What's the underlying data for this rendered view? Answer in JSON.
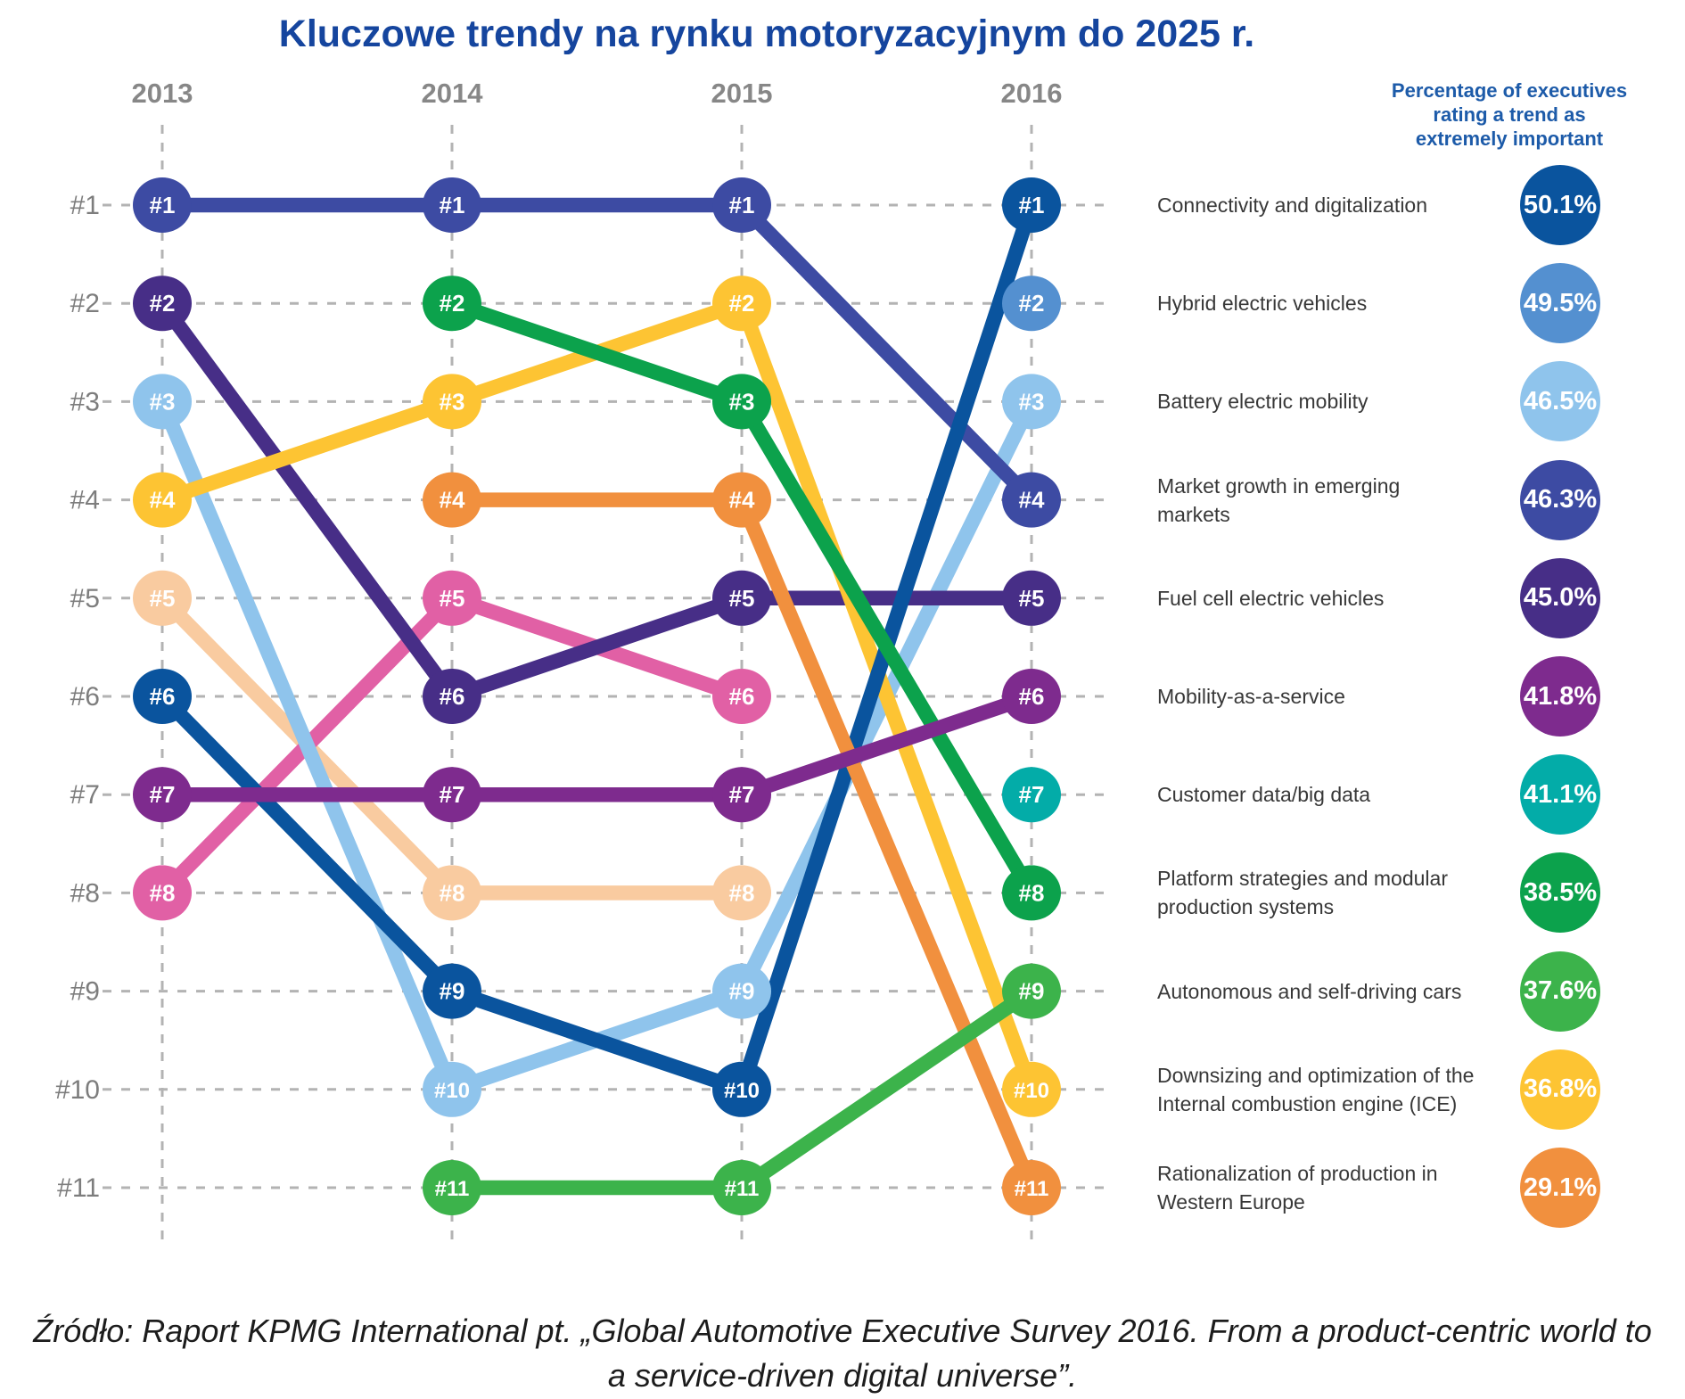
{
  "title": "Kluczowe trendy na rynku motoryzacyjnym do 2025 r.",
  "right_header_lines": [
    "Percentage of executives",
    "rating a trend as",
    "extremely important"
  ],
  "source_lines": [
    "Źródło: Raport KPMG International pt. „Global Automotive Executive Survey 2016. From a product-centric world to",
    "a service-driven digital universe”."
  ],
  "palette": {
    "brand_blue": "#15459E",
    "header_blue": "#1D5BA9",
    "year_gray": "#878787",
    "rank_gray": "#7D7D7D",
    "grid_gray": "#B3B3B3",
    "legend_text": "#383838",
    "source_text": "#1C1C1C"
  },
  "chart_data": {
    "type": "bump",
    "years": [
      "2013",
      "2014",
      "2015",
      "2016"
    ],
    "rank_labels": [
      "#1",
      "#2",
      "#3",
      "#4",
      "#5",
      "#6",
      "#7",
      "#8",
      "#9",
      "#10",
      "#11"
    ],
    "grid": "dashed",
    "legend_position": "right",
    "trends": [
      {
        "key": "unnamed-peach-trend",
        "label_lines": [],
        "pct": null,
        "color": "#F9CBA0",
        "ranks": [
          5,
          8,
          8,
          null
        ]
      },
      {
        "key": "unnamed-pink-trend",
        "label_lines": [],
        "pct": null,
        "color": "#E160A5",
        "ranks": [
          8,
          5,
          6,
          null
        ]
      },
      {
        "key": "battery-electric-mobility",
        "label_lines": [
          "Battery electric mobility"
        ],
        "pct": "46.5%",
        "color": "#8FC4EC",
        "ranks": [
          3,
          10,
          9,
          3
        ]
      },
      {
        "key": "market-growth-emerging-markets",
        "label_lines": [
          "Market growth in emerging",
          "markets"
        ],
        "pct": "46.3%",
        "color": "#3D4BA3",
        "ranks": [
          1,
          1,
          1,
          4
        ]
      },
      {
        "key": "fuel-cell-electric-vehicles",
        "label_lines": [
          "Fuel cell electric vehicles"
        ],
        "pct": "45.0%",
        "color": "#472E87",
        "ranks": [
          2,
          6,
          5,
          5
        ]
      },
      {
        "key": "ice-downsizing",
        "label_lines": [
          "Downsizing and optimization of the",
          "Internal combustion engine (ICE)"
        ],
        "pct": "36.8%",
        "color": "#FDC433",
        "ranks": [
          4,
          3,
          2,
          10
        ]
      },
      {
        "key": "connectivity-and-digitalization",
        "label_lines": [
          "Connectivity and digitalization"
        ],
        "pct": "50.1%",
        "color": "#0A549E",
        "ranks": [
          6,
          9,
          10,
          1
        ]
      },
      {
        "key": "rationalization-western-europe",
        "label_lines": [
          "Rationalization of production in",
          "Western Europe"
        ],
        "pct": "29.1%",
        "color": "#F1903E",
        "ranks": [
          null,
          4,
          4,
          11
        ]
      },
      {
        "key": "platform-strategies",
        "label_lines": [
          "Platform strategies and modular",
          "production systems"
        ],
        "pct": "38.5%",
        "color": "#0CA24C",
        "ranks": [
          null,
          2,
          3,
          8
        ]
      },
      {
        "key": "autonomous-self-driving-cars",
        "label_lines": [
          "Autonomous and self-driving cars"
        ],
        "pct": "37.6%",
        "color": "#3CB34B",
        "ranks": [
          null,
          11,
          11,
          9
        ]
      },
      {
        "key": "mobility-as-a-service",
        "label_lines": [
          "Mobility-as-a-service"
        ],
        "pct": "41.8%",
        "color": "#7E2B8E",
        "ranks": [
          7,
          7,
          7,
          6
        ]
      },
      {
        "key": "hybrid-electric-vehicles",
        "label_lines": [
          "Hybrid electric vehicles"
        ],
        "pct": "49.5%",
        "color": "#5490D0",
        "ranks": [
          null,
          null,
          null,
          2
        ]
      },
      {
        "key": "customer-data-big-data",
        "label_lines": [
          "Customer data/big data"
        ],
        "pct": "41.1%",
        "color": "#03ACA8",
        "ranks": [
          null,
          null,
          null,
          7
        ]
      }
    ]
  }
}
